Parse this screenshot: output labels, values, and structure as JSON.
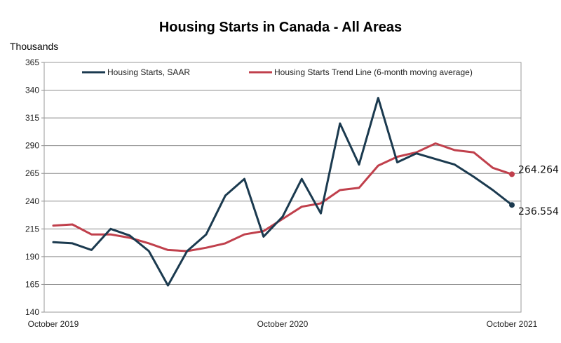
{
  "chart_data": {
    "type": "line",
    "title": "Housing Starts in Canada - All Areas",
    "ylabel": "Thousands",
    "ylim": [
      140,
      365
    ],
    "yticks": [
      140,
      165,
      190,
      215,
      240,
      265,
      290,
      315,
      340,
      365
    ],
    "x": [
      "Oct 2019",
      "Nov 2019",
      "Dec 2019",
      "Jan 2020",
      "Feb 2020",
      "Mar 2020",
      "Apr 2020",
      "May 2020",
      "Jun 2020",
      "Jul 2020",
      "Aug 2020",
      "Sep 2020",
      "Oct 2020",
      "Nov 2020",
      "Dec 2020",
      "Jan 2021",
      "Feb 2021",
      "Mar 2021",
      "Apr 2021",
      "May 2021",
      "Jun 2021",
      "Jul 2021",
      "Aug 2021",
      "Sep 2021",
      "Oct 2021"
    ],
    "xtick_labels": [
      {
        "index": 0,
        "label": "October 2019"
      },
      {
        "index": 12,
        "label": "October 2020"
      },
      {
        "index": 24,
        "label": "October 2021"
      }
    ],
    "series": [
      {
        "name": "Housing Starts, SAAR",
        "color": "#1b3a4f",
        "values": [
          203,
          202,
          196,
          215,
          209,
          195,
          164,
          195,
          210,
          245,
          260,
          208,
          226,
          260,
          229,
          310,
          273,
          333,
          275,
          283,
          278,
          273,
          262,
          250,
          236.554
        ]
      },
      {
        "name": "Housing Starts Trend Line (6-month moving average)",
        "color": "#c0404c",
        "values": [
          218,
          219,
          210,
          210,
          207,
          202,
          196,
          195,
          198,
          202,
          210,
          213,
          224,
          235,
          238,
          250,
          252,
          272,
          280,
          284,
          292,
          286,
          284,
          270,
          264.264
        ]
      }
    ],
    "end_labels": [
      "264.264",
      "236.554"
    ],
    "legend": "top",
    "grid": true
  }
}
